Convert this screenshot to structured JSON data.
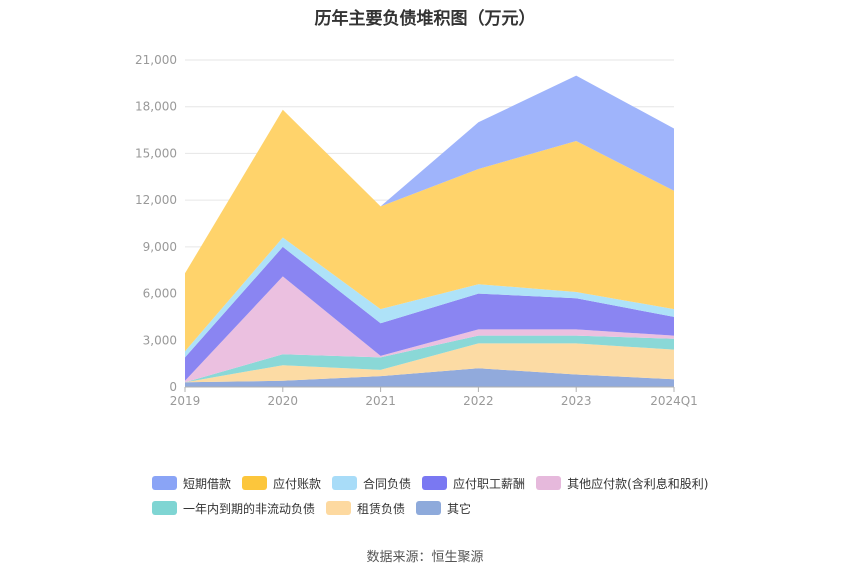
{
  "chart_data": {
    "type": "area",
    "stacked": true,
    "title": "历年主要负债堆积图（万元）",
    "categories": [
      "2019",
      "2020",
      "2021",
      "2022",
      "2023",
      "2024Q1"
    ],
    "ylim": [
      0,
      21000
    ],
    "yticks": [
      "0",
      "3,000",
      "6,000",
      "9,000",
      "12,000",
      "15,000",
      "18,000",
      "21,000"
    ],
    "ytick_values": [
      0,
      3000,
      6000,
      9000,
      12000,
      15000,
      18000,
      21000
    ],
    "grid": true,
    "legend_position": "bottom",
    "series": [
      {
        "name": "其它",
        "color": "#91aadc",
        "values": [
          300,
          400,
          700,
          1200,
          800,
          500
        ]
      },
      {
        "name": "租赁负债",
        "color": "#fcdba4",
        "values": [
          0,
          1000,
          400,
          1600,
          2000,
          1900
        ]
      },
      {
        "name": "一年内到期的非流动负债",
        "color": "#8ad8d7",
        "values": [
          0,
          700,
          800,
          500,
          500,
          700
        ]
      },
      {
        "name": "其他应付款(含利息和股利)",
        "color": "#ebc0e0",
        "values": [
          100,
          5000,
          100,
          400,
          400,
          200
        ]
      },
      {
        "name": "应付职工薪酬",
        "color": "#8a85f2",
        "values": [
          1500,
          1900,
          2100,
          2300,
          2000,
          1200
        ]
      },
      {
        "name": "合同负债",
        "color": "#aee2f8",
        "values": [
          400,
          600,
          900,
          600,
          400,
          500
        ]
      },
      {
        "name": "应付账款",
        "color": "#ffd36b",
        "values": [
          5000,
          8200,
          6600,
          7400,
          9700,
          7600
        ]
      },
      {
        "name": "短期借款",
        "color": "#9fb4fb",
        "values": [
          0,
          0,
          0,
          3000,
          4200,
          4000
        ]
      }
    ],
    "source": "数据来源：恒生聚源"
  },
  "legend_rows": [
    [
      {
        "label": "短期借款",
        "color": "#8aa4f6"
      },
      {
        "label": "应付账款",
        "color": "#fcc63c"
      },
      {
        "label": "合同负债",
        "color": "#a8dcf8"
      },
      {
        "label": "应付职工薪酬",
        "color": "#7a78f2"
      },
      {
        "label": "其他应付款(含利息和股利)",
        "color": "#e6b9dc"
      }
    ],
    [
      {
        "label": "一年内到期的非流动负债",
        "color": "#7fd5d3"
      },
      {
        "label": "租赁负债",
        "color": "#fdd9a0"
      },
      {
        "label": "其它",
        "color": "#8eaadb"
      }
    ]
  ]
}
